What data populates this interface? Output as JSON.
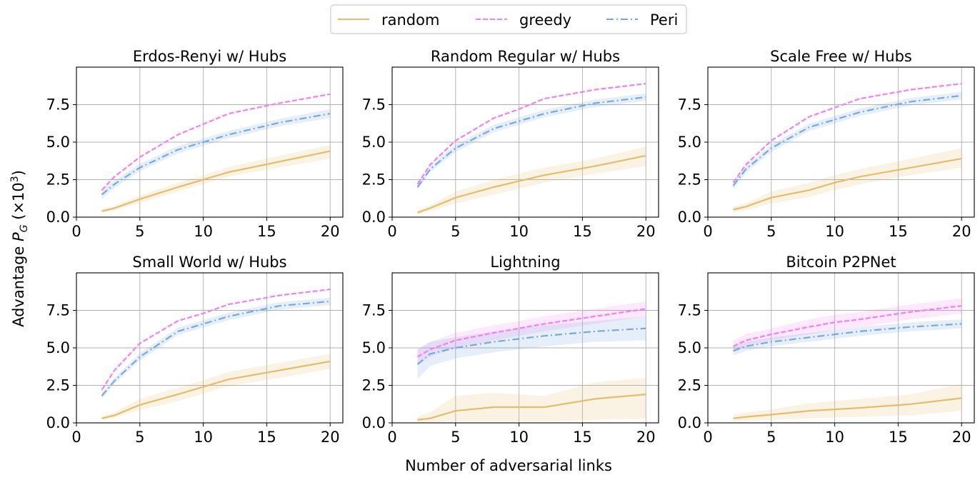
{
  "figure": {
    "ylabel_main": "Advantage ",
    "ylabel_sym": "P",
    "ylabel_sub": "G",
    "ylabel_unit_open": " (×10",
    "ylabel_exp": "3",
    "ylabel_unit_close": ")",
    "xlabel": "Number of adversarial links"
  },
  "legend": {
    "entries": [
      {
        "label": "random",
        "color": "#e3bd6b",
        "dash": "solid"
      },
      {
        "label": "greedy",
        "color": "#f57ef0",
        "dash": "dashed"
      },
      {
        "label": "Peri",
        "color": "#77a9e0",
        "dash": "dashdot"
      }
    ]
  },
  "chart_data": [
    {
      "type": "line",
      "title": "Erdos-Renyi w/ Hubs",
      "x": [
        2,
        3,
        5,
        8,
        10,
        12,
        16,
        20
      ],
      "xlim": [
        0,
        21
      ],
      "ylim": [
        0,
        10
      ],
      "xticks": [
        "0",
        "5",
        "10",
        "15",
        "20"
      ],
      "xtick_values": [
        0,
        5,
        10,
        15,
        20
      ],
      "yticks": [
        "0.0",
        "2.5",
        "5.0",
        "7.5"
      ],
      "ytick_values": [
        0,
        2.5,
        5.0,
        7.5
      ],
      "grid": true,
      "series": [
        {
          "name": "random",
          "values": [
            0.4,
            0.6,
            1.2,
            2.0,
            2.5,
            3.0,
            3.7,
            4.4
          ],
          "lower": [
            0.3,
            0.45,
            0.95,
            1.7,
            2.2,
            2.7,
            3.3,
            3.9
          ],
          "upper": [
            0.5,
            0.75,
            1.45,
            2.3,
            2.8,
            3.35,
            4.1,
            4.8
          ]
        },
        {
          "name": "greedy",
          "values": [
            1.8,
            2.7,
            4.0,
            5.5,
            6.2,
            6.9,
            7.6,
            8.2
          ]
        },
        {
          "name": "Peri",
          "values": [
            1.5,
            2.2,
            3.3,
            4.5,
            5.0,
            5.5,
            6.3,
            6.9
          ],
          "lower": [
            1.2,
            1.95,
            3.05,
            4.25,
            4.75,
            5.25,
            6.05,
            6.6
          ],
          "upper": [
            1.8,
            2.45,
            3.55,
            4.75,
            5.25,
            5.75,
            6.55,
            7.2
          ]
        }
      ]
    },
    {
      "type": "line",
      "title": "Random Regular w/ Hubs",
      "x": [
        2,
        3,
        5,
        8,
        10,
        12,
        16,
        20
      ],
      "xlim": [
        0,
        21
      ],
      "ylim": [
        0,
        10
      ],
      "xticks": [
        "0",
        "5",
        "10",
        "15",
        "20"
      ],
      "xtick_values": [
        0,
        5,
        10,
        15,
        20
      ],
      "yticks": [
        "0.0",
        "2.5",
        "5.0",
        "7.5"
      ],
      "ytick_values": [
        0,
        2.5,
        5.0,
        7.5
      ],
      "grid": true,
      "series": [
        {
          "name": "random",
          "values": [
            0.3,
            0.6,
            1.3,
            2.0,
            2.4,
            2.8,
            3.4,
            4.1
          ],
          "lower": [
            0.2,
            0.4,
            0.9,
            1.5,
            1.9,
            2.3,
            2.9,
            3.4
          ],
          "upper": [
            0.4,
            0.8,
            1.7,
            2.5,
            2.9,
            3.3,
            3.9,
            4.7
          ]
        },
        {
          "name": "greedy",
          "values": [
            2.2,
            3.5,
            5.1,
            6.6,
            7.2,
            7.9,
            8.5,
            8.9
          ]
        },
        {
          "name": "Peri",
          "values": [
            2.0,
            3.2,
            4.6,
            5.9,
            6.4,
            6.9,
            7.6,
            8.0
          ],
          "lower": [
            1.8,
            3.0,
            4.35,
            5.65,
            6.15,
            6.65,
            7.35,
            7.75
          ],
          "upper": [
            2.2,
            3.4,
            4.85,
            6.15,
            6.65,
            7.15,
            7.85,
            8.25
          ]
        }
      ]
    },
    {
      "type": "line",
      "title": "Scale Free w/ Hubs",
      "x": [
        2,
        3,
        5,
        8,
        10,
        12,
        16,
        20
      ],
      "xlim": [
        0,
        21
      ],
      "ylim": [
        0,
        10
      ],
      "xticks": [
        "0",
        "5",
        "10",
        "15",
        "20"
      ],
      "xtick_values": [
        0,
        5,
        10,
        15,
        20
      ],
      "yticks": [
        "0.0",
        "2.5",
        "5.0",
        "7.5"
      ],
      "ytick_values": [
        0,
        2.5,
        5.0,
        7.5
      ],
      "grid": true,
      "series": [
        {
          "name": "random",
          "values": [
            0.5,
            0.7,
            1.3,
            1.8,
            2.3,
            2.7,
            3.3,
            3.9
          ],
          "lower": [
            0.3,
            0.45,
            0.9,
            1.35,
            1.8,
            2.2,
            2.8,
            3.3
          ],
          "upper": [
            0.7,
            0.95,
            1.7,
            2.3,
            2.8,
            3.2,
            3.9,
            4.6
          ]
        },
        {
          "name": "greedy",
          "values": [
            2.3,
            3.5,
            5.1,
            6.7,
            7.3,
            7.9,
            8.5,
            8.9
          ]
        },
        {
          "name": "Peri",
          "values": [
            2.1,
            3.2,
            4.6,
            6.0,
            6.5,
            7.0,
            7.7,
            8.1
          ],
          "lower": [
            1.85,
            2.95,
            4.35,
            5.75,
            6.25,
            6.75,
            7.45,
            7.85
          ],
          "upper": [
            2.35,
            3.45,
            4.85,
            6.25,
            6.75,
            7.25,
            7.95,
            8.35
          ]
        }
      ]
    },
    {
      "type": "line",
      "title": "Small World w/ Hubs",
      "x": [
        2,
        3,
        5,
        8,
        10,
        12,
        16,
        20
      ],
      "xlim": [
        0,
        21
      ],
      "ylim": [
        0,
        10
      ],
      "xticks": [
        "0",
        "5",
        "10",
        "15",
        "20"
      ],
      "xtick_values": [
        0,
        5,
        10,
        15,
        20
      ],
      "yticks": [
        "0.0",
        "2.5",
        "5.0",
        "7.5"
      ],
      "ytick_values": [
        0,
        2.5,
        5.0,
        7.5
      ],
      "grid": true,
      "series": [
        {
          "name": "random",
          "values": [
            0.3,
            0.5,
            1.2,
            1.9,
            2.4,
            2.9,
            3.5,
            4.1
          ],
          "lower": [
            0.2,
            0.35,
            0.85,
            1.45,
            1.95,
            2.45,
            3.0,
            3.6
          ],
          "upper": [
            0.45,
            0.7,
            1.6,
            2.35,
            2.85,
            3.4,
            4.0,
            4.6
          ]
        },
        {
          "name": "greedy",
          "values": [
            2.2,
            3.5,
            5.3,
            6.8,
            7.3,
            7.9,
            8.5,
            8.9
          ]
        },
        {
          "name": "Peri",
          "values": [
            1.8,
            2.8,
            4.4,
            6.1,
            6.6,
            7.1,
            7.8,
            8.1
          ],
          "lower": [
            1.6,
            2.6,
            4.15,
            5.85,
            6.35,
            6.85,
            7.55,
            7.85
          ],
          "upper": [
            2.0,
            3.0,
            4.65,
            6.35,
            6.85,
            7.35,
            8.05,
            8.35
          ]
        }
      ]
    },
    {
      "type": "line",
      "title": "Lightning",
      "x": [
        2,
        3,
        5,
        8,
        10,
        12,
        16,
        20
      ],
      "xlim": [
        0,
        21
      ],
      "ylim": [
        0,
        10
      ],
      "xticks": [
        "0",
        "5",
        "10",
        "15",
        "20"
      ],
      "xtick_values": [
        0,
        5,
        10,
        15,
        20
      ],
      "yticks": [
        "0.0",
        "2.5",
        "5.0",
        "7.5"
      ],
      "ytick_values": [
        0,
        2.5,
        5.0,
        7.5
      ],
      "grid": true,
      "series": [
        {
          "name": "random",
          "values": [
            0.2,
            0.3,
            0.8,
            1.05,
            1.05,
            1.05,
            1.6,
            1.9
          ],
          "lower": [
            0.05,
            0.05,
            0.1,
            0.1,
            0.1,
            0.1,
            0.2,
            0.3
          ],
          "upper": [
            0.4,
            0.7,
            1.8,
            2.0,
            1.9,
            1.8,
            2.7,
            3.0
          ]
        },
        {
          "name": "greedy",
          "values": [
            4.4,
            4.9,
            5.5,
            6.0,
            6.3,
            6.6,
            7.1,
            7.6
          ],
          "lower": [
            3.9,
            4.4,
            5.0,
            5.5,
            5.8,
            6.1,
            6.6,
            7.1
          ],
          "upper": [
            4.9,
            5.4,
            6.0,
            6.5,
            6.8,
            7.1,
            7.6,
            8.1
          ]
        },
        {
          "name": "Peri",
          "values": [
            3.9,
            4.6,
            5.0,
            5.4,
            5.6,
            5.8,
            6.1,
            6.3
          ],
          "lower": [
            2.9,
            3.8,
            4.3,
            4.7,
            4.9,
            5.1,
            5.4,
            5.5
          ],
          "upper": [
            4.9,
            5.4,
            5.7,
            6.1,
            6.3,
            6.5,
            6.8,
            7.1
          ]
        }
      ]
    },
    {
      "type": "line",
      "title": "Bitcoin P2PNet",
      "x": [
        2,
        3,
        5,
        8,
        10,
        12,
        16,
        20
      ],
      "xlim": [
        0,
        21
      ],
      "ylim": [
        0,
        10
      ],
      "xticks": [
        "0",
        "5",
        "10",
        "15",
        "20"
      ],
      "xtick_values": [
        0,
        5,
        10,
        15,
        20
      ],
      "yticks": [
        "0.0",
        "2.5",
        "5.0",
        "7.5"
      ],
      "ytick_values": [
        0,
        2.5,
        5.0,
        7.5
      ],
      "grid": true,
      "series": [
        {
          "name": "random",
          "values": [
            0.3,
            0.4,
            0.55,
            0.8,
            0.9,
            1.0,
            1.25,
            1.65
          ],
          "lower": [
            0.1,
            0.15,
            0.2,
            0.3,
            0.35,
            0.4,
            0.5,
            0.8
          ],
          "upper": [
            0.55,
            0.7,
            0.9,
            1.3,
            1.45,
            1.6,
            1.9,
            2.6
          ]
        },
        {
          "name": "greedy",
          "values": [
            5.1,
            5.5,
            5.9,
            6.4,
            6.7,
            6.9,
            7.4,
            7.8
          ],
          "lower": [
            4.7,
            5.1,
            5.5,
            5.9,
            6.2,
            6.4,
            6.9,
            7.3
          ],
          "upper": [
            5.5,
            5.9,
            6.3,
            6.9,
            7.2,
            7.4,
            7.9,
            8.3
          ]
        },
        {
          "name": "Peri",
          "values": [
            4.8,
            5.1,
            5.4,
            5.7,
            5.9,
            6.1,
            6.4,
            6.6
          ],
          "lower": [
            4.5,
            4.8,
            5.1,
            5.4,
            5.6,
            5.8,
            6.1,
            6.3
          ],
          "upper": [
            5.1,
            5.4,
            5.7,
            6.0,
            6.2,
            6.4,
            6.7,
            6.9
          ]
        }
      ]
    }
  ]
}
